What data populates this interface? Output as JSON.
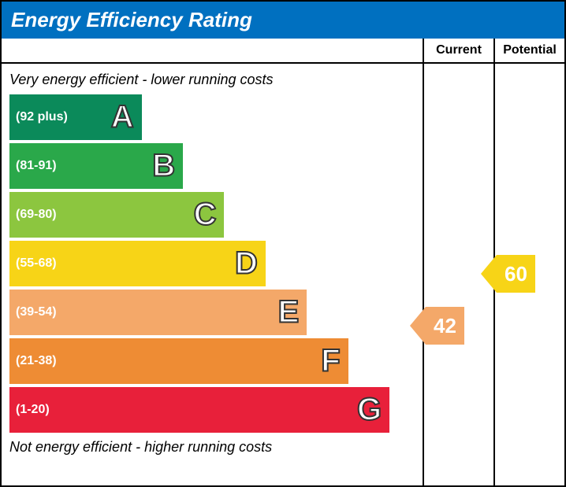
{
  "title": "Energy Efficiency Rating",
  "title_bg": "#0070c0",
  "title_fg": "#ffffff",
  "header": {
    "current": "Current",
    "potential": "Potential"
  },
  "note_top": "Very energy efficient - lower running costs",
  "note_bottom": "Not energy efficient - higher running costs",
  "note_fontsize": 18,
  "band_height": 58,
  "band_gap": 4,
  "letter_fontsize": 40,
  "range_fontsize": 16,
  "bands": [
    {
      "letter": "A",
      "range": "(92 plus)",
      "width_pct": 32,
      "color": "#0b8a5a"
    },
    {
      "letter": "B",
      "range": "(81-91)",
      "width_pct": 42,
      "color": "#2aa84a"
    },
    {
      "letter": "C",
      "range": "(69-80)",
      "width_pct": 52,
      "color": "#8cc63f"
    },
    {
      "letter": "D",
      "range": "(55-68)",
      "width_pct": 62,
      "color": "#f7d417"
    },
    {
      "letter": "E",
      "range": "(39-54)",
      "width_pct": 72,
      "color": "#f4a869"
    },
    {
      "letter": "F",
      "range": "(21-38)",
      "width_pct": 82,
      "color": "#ee8c34"
    },
    {
      "letter": "G",
      "range": "(1-20)",
      "width_pct": 92,
      "color": "#e8203a"
    }
  ],
  "current": {
    "value": "42",
    "band_index": 4,
    "color": "#f4a869"
  },
  "potential": {
    "value": "60",
    "band_index": 3,
    "color": "#f7d417"
  },
  "arrow_fontsize": 26,
  "side_col_width": 90
}
